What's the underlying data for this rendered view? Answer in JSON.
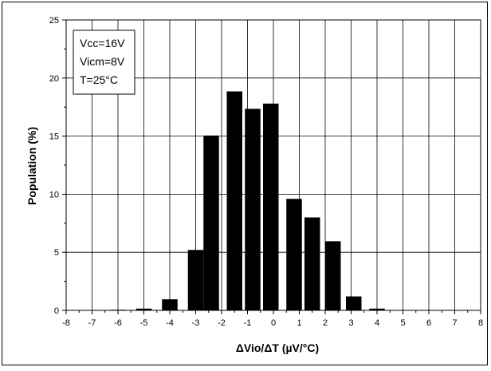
{
  "chart_data": {
    "type": "bar",
    "title": "",
    "xlabel": "ΔVio/ΔT (µV/°C)",
    "ylabel": "Population (%)",
    "xlim": [
      -8,
      8
    ],
    "ylim": [
      0,
      25
    ],
    "xticks": [
      "-8",
      "-7",
      "-6",
      "-5",
      "-4",
      "-3",
      "-2",
      "-1",
      "0",
      "1",
      "2",
      "3",
      "4",
      "5",
      "6",
      "7",
      "8"
    ],
    "yticks": [
      "0",
      "5",
      "10",
      "15",
      "20",
      "25"
    ],
    "grid": true,
    "legend": "none",
    "bar_width": 0.6,
    "bar_color": "#000000",
    "x": [
      -6,
      -5,
      -4,
      -3,
      -2.4,
      -1.5,
      -0.8,
      -0.1,
      0.8,
      1.5,
      2.3,
      3.1,
      4
    ],
    "values": [
      0.05,
      0.15,
      0.95,
      5.2,
      15.05,
      18.85,
      17.35,
      17.8,
      9.6,
      8.0,
      5.95,
      1.2,
      0.15
    ],
    "annotation": [
      "Vcc=16V",
      "Vicm=8V",
      "T=25°C"
    ]
  }
}
